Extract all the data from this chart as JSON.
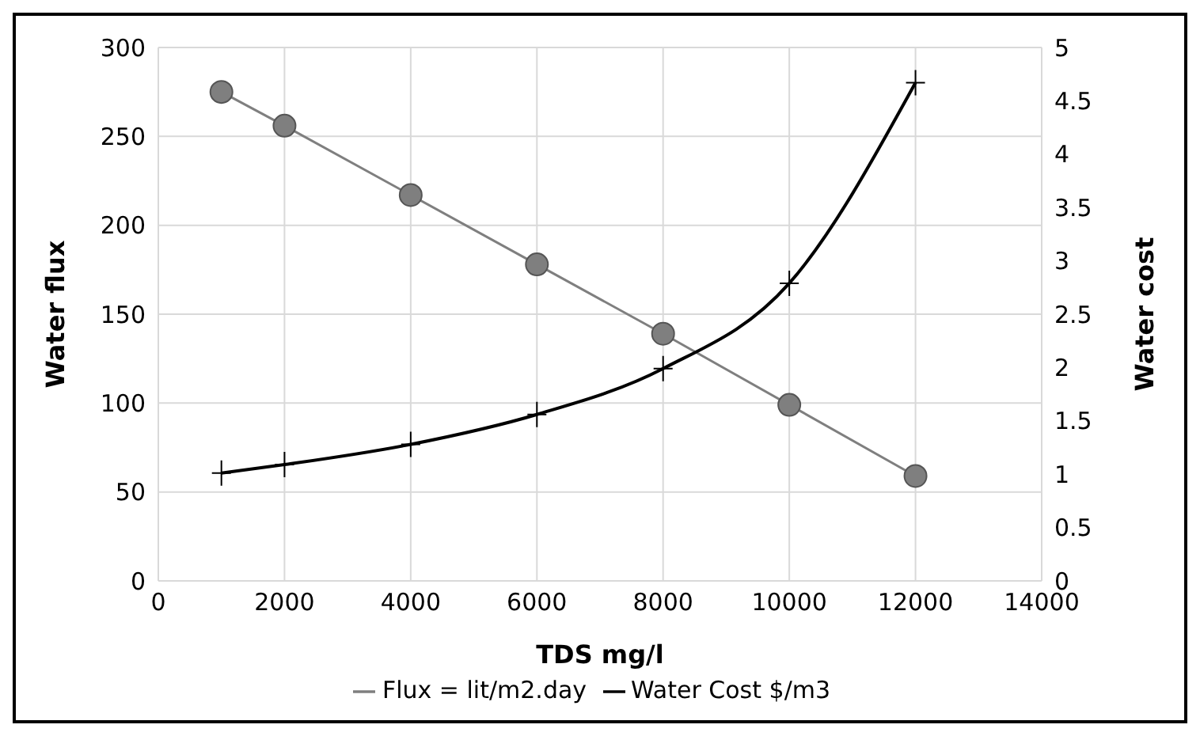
{
  "chart_data": {
    "type": "line",
    "xlabel": "TDS mg/l",
    "ylabel": "Water flux",
    "y2label": "Water cost",
    "x": [
      1000,
      2000,
      4000,
      6000,
      8000,
      10000,
      12000
    ],
    "series": [
      {
        "name": "Flux = lit/m2.day",
        "color": "#7f7f7f",
        "marker": "circle",
        "values": [
          275,
          256,
          217,
          178,
          139,
          99,
          59
        ]
      },
      {
        "name": "Water Cost $/m3",
        "color": "#000000",
        "marker": "cross",
        "axis": "y2",
        "values": [
          1.01,
          1.09,
          1.28,
          1.56,
          1.99,
          2.79,
          4.67
        ]
      }
    ],
    "xlim": [
      0,
      14000
    ],
    "xticks": [
      0,
      2000,
      4000,
      6000,
      8000,
      10000,
      12000,
      14000
    ],
    "ylim": [
      0,
      300
    ],
    "yticks": [
      0,
      50,
      100,
      150,
      200,
      250,
      300
    ],
    "y2lim": [
      0,
      5
    ],
    "y2ticks": [
      0,
      0.5,
      1,
      1.5,
      2,
      2.5,
      3,
      3.5,
      4,
      4.5,
      5
    ],
    "grid": true,
    "legend": "bottom"
  }
}
